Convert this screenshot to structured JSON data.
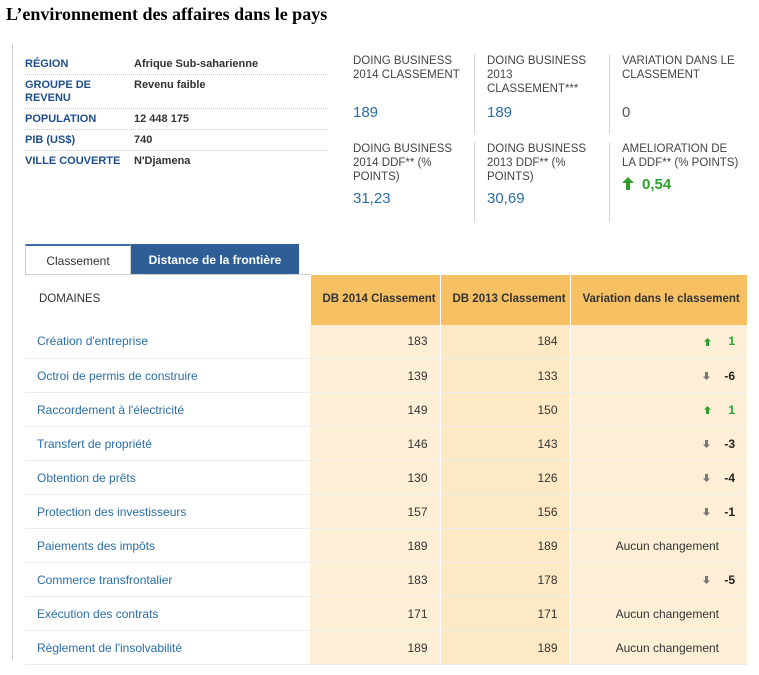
{
  "title": "L’environnement des affaires dans le pays",
  "info": [
    {
      "label": "RÉGION",
      "value": "Afrique Sub-saharienne"
    },
    {
      "label": "GROUPE DE REVENU",
      "value": "Revenu faible"
    },
    {
      "label": "POPULATION",
      "value": "12 448 175"
    },
    {
      "label": "PIB (US$)",
      "value": "740"
    },
    {
      "label": "VILLE COUVERTE",
      "value": "N'Djamena"
    }
  ],
  "stats": [
    {
      "label": "DOING BUSINESS 2014 CLASSEMENT",
      "value": "189",
      "style": "blue"
    },
    {
      "label": "DOING BUSINESS 2013 CLASSEMENT***",
      "value": "189",
      "style": "blue"
    },
    {
      "label": "VARIATION DANS LE CLASSEMENT",
      "value": "0",
      "style": "plain"
    },
    {
      "label": "DOING BUSINESS 2014 DDF** (% POINTS)",
      "value": "31,23",
      "style": "blue"
    },
    {
      "label": "DOING BUSINESS 2013 DDF** (% POINTS)",
      "value": "30,69",
      "style": "blue"
    },
    {
      "label": "AMELIORATION DE LA DDF** (% POINTS)",
      "value": "0,54",
      "style": "green",
      "icon": "up-arrow-icon"
    }
  ],
  "tabs": {
    "active": "Classement",
    "inactive": "Distance de la frontière"
  },
  "table": {
    "headers": {
      "domain": "DOMAINES",
      "db2014": "DB 2014 Classement",
      "db2013": "DB 2013 Classement",
      "variation": "Variation dans le classement"
    },
    "rows": [
      {
        "domain": "Création d'entreprise",
        "db2014": "183",
        "db2013": "184",
        "direction": "up",
        "change": "1"
      },
      {
        "domain": "Octroi de permis de construire",
        "db2014": "139",
        "db2013": "133",
        "direction": "down",
        "change": "-6"
      },
      {
        "domain": "Raccordement à l'électricité",
        "db2014": "149",
        "db2013": "150",
        "direction": "up",
        "change": "1"
      },
      {
        "domain": "Transfert de propriété",
        "db2014": "146",
        "db2013": "143",
        "direction": "down",
        "change": "-3"
      },
      {
        "domain": "Obtention de prêts",
        "db2014": "130",
        "db2013": "126",
        "direction": "down",
        "change": "-4"
      },
      {
        "domain": "Protection des investisseurs",
        "db2014": "157",
        "db2013": "156",
        "direction": "down",
        "change": "-1"
      },
      {
        "domain": "Paiements des impôts",
        "db2014": "189",
        "db2013": "189",
        "direction": "none",
        "change": "Aucun changement"
      },
      {
        "domain": "Commerce transfrontalier",
        "db2014": "183",
        "db2013": "178",
        "direction": "down",
        "change": "-5"
      },
      {
        "domain": "Exécution des contrats",
        "db2014": "171",
        "db2013": "171",
        "direction": "none",
        "change": "Aucun changement"
      },
      {
        "domain": "Règlement de l'insolvabilité",
        "db2014": "189",
        "db2013": "189",
        "direction": "none",
        "change": "Aucun changement"
      }
    ]
  },
  "colors": {
    "accent_blue": "#2a6ea8",
    "tab_blue": "#2d5f96",
    "header_orange": "#f7c063",
    "cell_cream": "#fdefd6",
    "up_green": "#2fa02f"
  }
}
